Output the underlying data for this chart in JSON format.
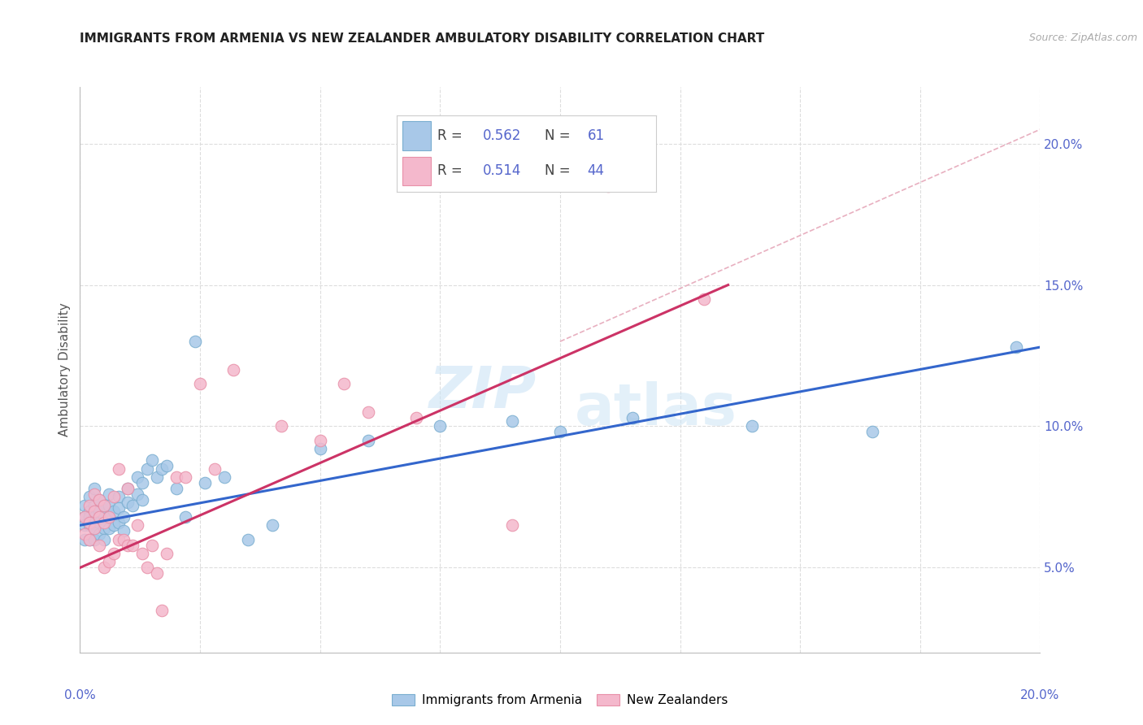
{
  "title": "IMMIGRANTS FROM ARMENIA VS NEW ZEALANDER AMBULATORY DISABILITY CORRELATION CHART",
  "source": "Source: ZipAtlas.com",
  "ylabel": "Ambulatory Disability",
  "legend_label_blue": "Immigrants from Armenia",
  "legend_label_pink": "New Zealanders",
  "blue_color": "#a8c8e8",
  "blue_edge_color": "#7aaed0",
  "pink_color": "#f4b8cc",
  "pink_edge_color": "#e890a8",
  "blue_line_color": "#3366cc",
  "pink_line_color": "#cc3366",
  "dashed_line_color": "#e8b0c0",
  "grid_color": "#dddddd",
  "text_color_blue": "#5566cc",
  "xlim": [
    0.0,
    0.2
  ],
  "ylim": [
    0.02,
    0.22
  ],
  "yticks": [
    0.05,
    0.1,
    0.15,
    0.2
  ],
  "ytick_labels": [
    "5.0%",
    "10.0%",
    "15.0%",
    "20.0%"
  ],
  "blue_scatter_x": [
    0.001,
    0.001,
    0.001,
    0.001,
    0.002,
    0.002,
    0.002,
    0.002,
    0.002,
    0.003,
    0.003,
    0.003,
    0.003,
    0.003,
    0.004,
    0.004,
    0.004,
    0.004,
    0.005,
    0.005,
    0.005,
    0.005,
    0.006,
    0.006,
    0.006,
    0.006,
    0.007,
    0.007,
    0.008,
    0.008,
    0.008,
    0.009,
    0.009,
    0.01,
    0.01,
    0.011,
    0.012,
    0.012,
    0.013,
    0.013,
    0.014,
    0.015,
    0.016,
    0.017,
    0.018,
    0.02,
    0.022,
    0.024,
    0.026,
    0.03,
    0.035,
    0.04,
    0.05,
    0.06,
    0.075,
    0.09,
    0.1,
    0.115,
    0.14,
    0.165,
    0.195
  ],
  "blue_scatter_y": [
    0.072,
    0.068,
    0.065,
    0.06,
    0.075,
    0.07,
    0.068,
    0.065,
    0.06,
    0.078,
    0.072,
    0.068,
    0.064,
    0.06,
    0.074,
    0.07,
    0.066,
    0.062,
    0.072,
    0.068,
    0.064,
    0.06,
    0.076,
    0.072,
    0.068,
    0.064,
    0.07,
    0.065,
    0.075,
    0.071,
    0.066,
    0.068,
    0.063,
    0.078,
    0.073,
    0.072,
    0.082,
    0.076,
    0.08,
    0.074,
    0.085,
    0.088,
    0.082,
    0.085,
    0.086,
    0.078,
    0.068,
    0.13,
    0.08,
    0.082,
    0.06,
    0.065,
    0.092,
    0.095,
    0.1,
    0.102,
    0.098,
    0.103,
    0.1,
    0.098,
    0.128
  ],
  "pink_scatter_x": [
    0.001,
    0.001,
    0.002,
    0.002,
    0.002,
    0.003,
    0.003,
    0.003,
    0.004,
    0.004,
    0.004,
    0.005,
    0.005,
    0.005,
    0.006,
    0.006,
    0.007,
    0.007,
    0.008,
    0.008,
    0.009,
    0.01,
    0.01,
    0.011,
    0.012,
    0.013,
    0.014,
    0.015,
    0.016,
    0.017,
    0.018,
    0.02,
    0.022,
    0.025,
    0.028,
    0.032,
    0.042,
    0.05,
    0.055,
    0.06,
    0.07,
    0.09,
    0.11,
    0.13
  ],
  "pink_scatter_y": [
    0.068,
    0.062,
    0.072,
    0.066,
    0.06,
    0.076,
    0.07,
    0.064,
    0.074,
    0.068,
    0.058,
    0.072,
    0.066,
    0.05,
    0.068,
    0.052,
    0.075,
    0.055,
    0.085,
    0.06,
    0.06,
    0.058,
    0.078,
    0.058,
    0.065,
    0.055,
    0.05,
    0.058,
    0.048,
    0.035,
    0.055,
    0.082,
    0.082,
    0.115,
    0.085,
    0.12,
    0.1,
    0.095,
    0.115,
    0.105,
    0.103,
    0.065,
    0.185,
    0.145
  ],
  "blue_line_x": [
    0.0,
    0.2
  ],
  "blue_line_y": [
    0.065,
    0.128
  ],
  "pink_line_x": [
    0.0,
    0.135
  ],
  "pink_line_y": [
    0.05,
    0.15
  ],
  "dash_line_x": [
    0.1,
    0.2
  ],
  "dash_line_y": [
    0.13,
    0.205
  ]
}
